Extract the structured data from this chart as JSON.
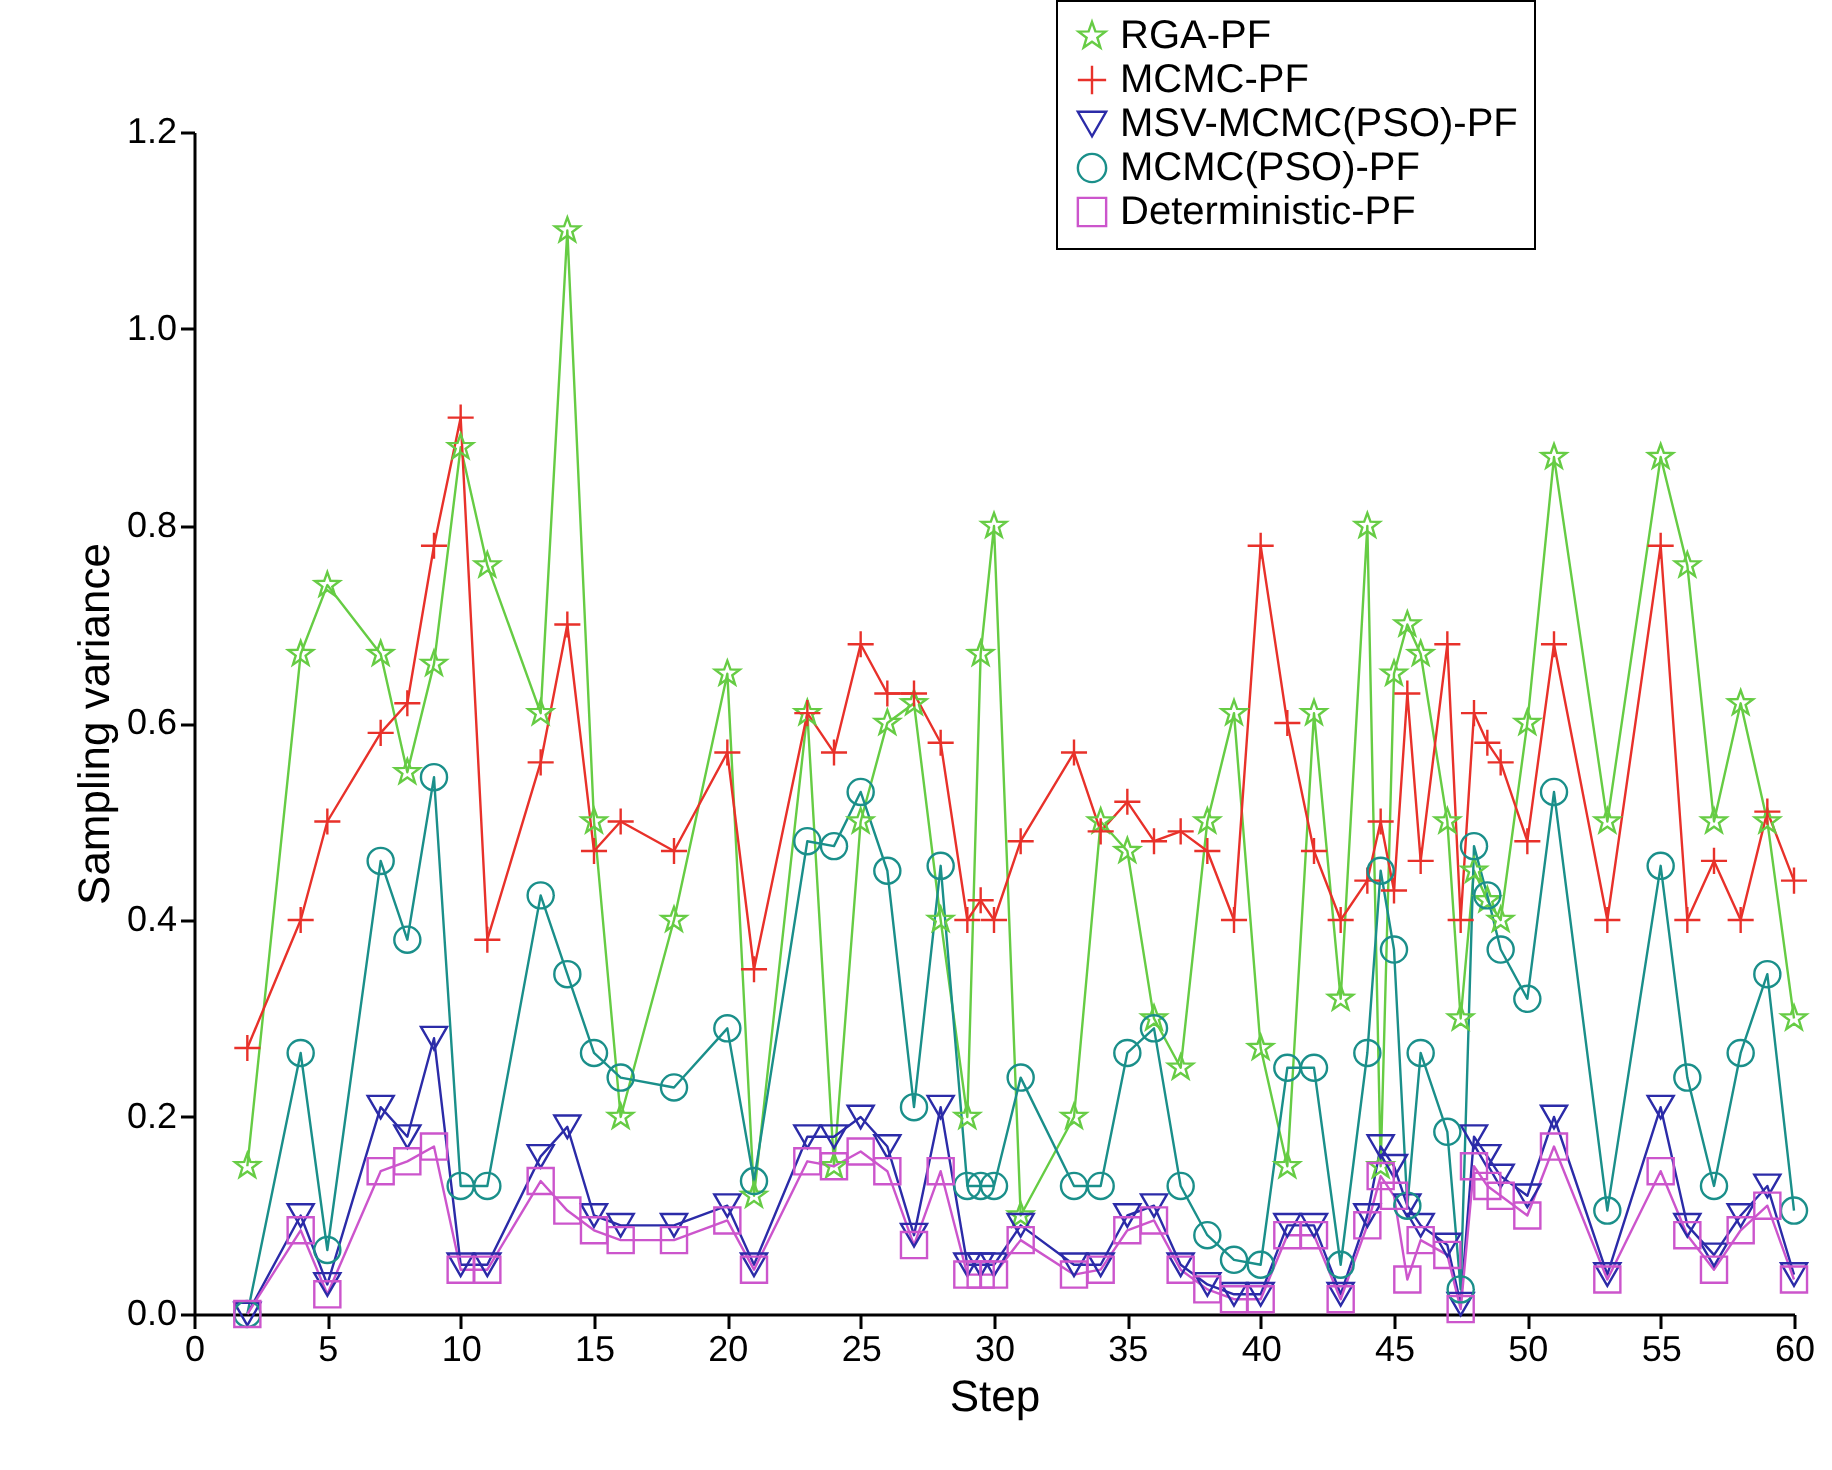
{
  "chart_data": {
    "type": "line",
    "xlabel": "Step",
    "ylabel": "Sampling variance",
    "x": [
      2,
      4,
      5,
      7,
      8,
      9,
      10,
      11,
      13,
      14,
      15,
      16,
      18,
      20,
      21,
      23,
      24,
      25,
      26,
      27,
      28,
      29,
      29.5,
      30,
      31,
      33,
      34,
      35,
      36,
      37,
      38,
      39,
      40,
      41,
      42,
      43,
      44,
      44.5,
      45,
      45.5,
      46,
      47,
      47.5,
      48,
      48.5,
      49,
      50,
      51,
      53,
      55,
      56,
      57,
      58,
      59,
      60
    ],
    "xlim": [
      0,
      60
    ],
    "xticks": [
      0,
      5,
      10,
      15,
      20,
      25,
      30,
      35,
      40,
      45,
      50,
      55,
      60
    ],
    "ylim": [
      0,
      1.2
    ],
    "yticks": [
      {
        "value": 0,
        "label": "0.0"
      },
      {
        "value": 0.2,
        "label": "0.2"
      },
      {
        "value": 0.4,
        "label": "0.4"
      },
      {
        "value": 0.6,
        "label": "0.6"
      },
      {
        "value": 0.8,
        "label": "0.8"
      },
      {
        "value": 1,
        "label": "1.0"
      },
      {
        "value": 1.2,
        "label": "1.2"
      }
    ],
    "grid": false,
    "legend": "top right",
    "series": [
      {
        "name": "RGA-PF",
        "color": "#66cc44",
        "marker": "star",
        "values": [
          0.15,
          0.67,
          0.74,
          0.67,
          0.55,
          0.66,
          0.88,
          0.76,
          0.61,
          1.1,
          0.5,
          0.2,
          0.4,
          0.65,
          0.12,
          0.61,
          0.15,
          0.5,
          0.6,
          0.62,
          0.4,
          0.2,
          0.67,
          0.8,
          0.1,
          0.2,
          0.5,
          0.47,
          0.3,
          0.25,
          0.5,
          0.61,
          0.27,
          0.15,
          0.61,
          0.32,
          0.8,
          0.15,
          0.65,
          0.7,
          0.67,
          0.5,
          0.3,
          0.45,
          0.42,
          0.4,
          0.6,
          0.87,
          0.5,
          0.87,
          0.76,
          0.5,
          0.62,
          0.5,
          0.3
        ]
      },
      {
        "name": "MCMC-PF",
        "color": "#e8312a",
        "marker": "cross",
        "values": [
          0.27,
          0.4,
          0.5,
          0.59,
          0.62,
          0.78,
          0.91,
          0.38,
          0.56,
          0.7,
          0.47,
          0.5,
          0.47,
          0.57,
          0.35,
          0.61,
          0.57,
          0.68,
          0.63,
          0.63,
          0.58,
          0.4,
          0.42,
          0.4,
          0.48,
          0.57,
          0.49,
          0.52,
          0.48,
          0.49,
          0.47,
          0.4,
          0.78,
          0.6,
          0.47,
          0.4,
          0.44,
          0.5,
          0.43,
          0.63,
          0.46,
          0.68,
          0.4,
          0.61,
          0.58,
          0.56,
          0.48,
          0.68,
          0.4,
          0.78,
          0.4,
          0.46,
          0.4,
          0.51,
          0.44
        ]
      },
      {
        "name": "MSV-MCMC(PSO)-PF",
        "color": "#2b2ba8",
        "marker": "triangle",
        "values": [
          0.0,
          0.1,
          0.03,
          0.21,
          0.18,
          0.28,
          0.05,
          0.05,
          0.16,
          0.19,
          0.1,
          0.09,
          0.09,
          0.11,
          0.05,
          0.18,
          0.18,
          0.2,
          0.17,
          0.08,
          0.21,
          0.05,
          0.05,
          0.05,
          0.09,
          0.05,
          0.05,
          0.1,
          0.11,
          0.05,
          0.03,
          0.02,
          0.02,
          0.09,
          0.09,
          0.02,
          0.1,
          0.17,
          0.15,
          0.11,
          0.09,
          0.07,
          0.01,
          0.18,
          0.16,
          0.14,
          0.12,
          0.2,
          0.04,
          0.21,
          0.09,
          0.06,
          0.1,
          0.13,
          0.04
        ]
      },
      {
        "name": "MCMC(PSO)-PF",
        "color": "#1a8f8a",
        "marker": "circle",
        "values": [
          0.0,
          0.265,
          0.065,
          0.46,
          0.38,
          0.545,
          0.13,
          0.13,
          0.425,
          0.345,
          0.265,
          0.24,
          0.23,
          0.29,
          0.135,
          0.48,
          0.475,
          0.53,
          0.45,
          0.21,
          0.455,
          0.13,
          0.13,
          0.13,
          0.24,
          0.13,
          0.13,
          0.265,
          0.29,
          0.13,
          0.08,
          0.055,
          0.05,
          0.25,
          0.25,
          0.05,
          0.265,
          0.45,
          0.37,
          0.11,
          0.265,
          0.185,
          0.025,
          0.475,
          0.425,
          0.37,
          0.32,
          0.53,
          0.105,
          0.455,
          0.24,
          0.13,
          0.265,
          0.345,
          0.105
        ]
      },
      {
        "name": "Deterministic-PF",
        "color": "#cc55cc",
        "marker": "square",
        "values": [
          0.0,
          0.085,
          0.02,
          0.145,
          0.155,
          0.17,
          0.045,
          0.045,
          0.135,
          0.105,
          0.085,
          0.075,
          0.075,
          0.095,
          0.045,
          0.155,
          0.15,
          0.165,
          0.145,
          0.07,
          0.145,
          0.04,
          0.04,
          0.04,
          0.075,
          0.04,
          0.045,
          0.085,
          0.095,
          0.045,
          0.025,
          0.015,
          0.015,
          0.08,
          0.08,
          0.015,
          0.09,
          0.14,
          0.12,
          0.035,
          0.075,
          0.06,
          0.005,
          0.15,
          0.13,
          0.12,
          0.1,
          0.17,
          0.035,
          0.145,
          0.08,
          0.045,
          0.085,
          0.11,
          0.035
        ]
      }
    ]
  }
}
